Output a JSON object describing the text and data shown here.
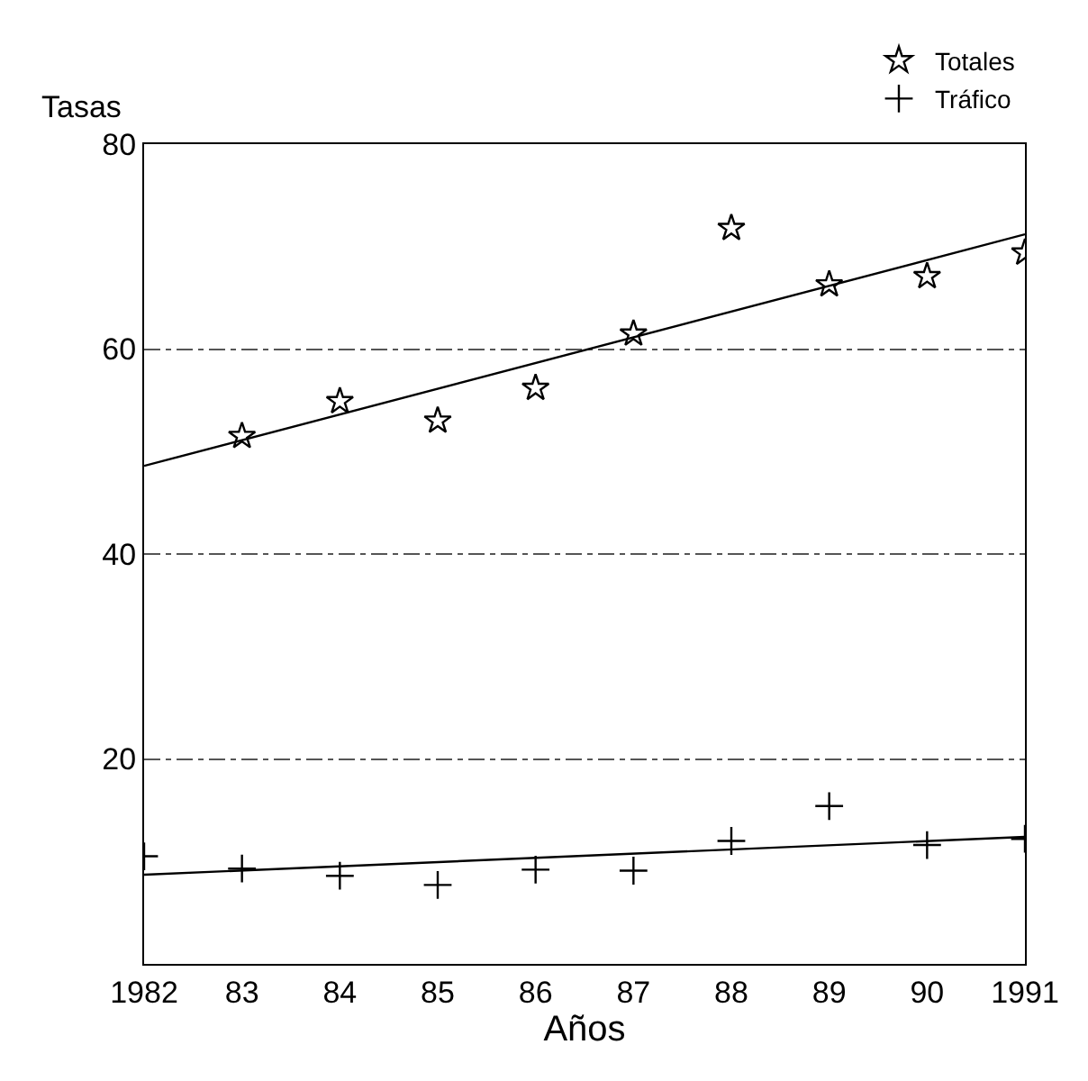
{
  "chart_data": {
    "type": "scatter",
    "xlabel": "Años",
    "ylabel": "Tasas",
    "x": [
      1982,
      1983,
      1984,
      1985,
      1986,
      1987,
      1988,
      1989,
      1990,
      1991
    ],
    "series": [
      {
        "name": "Totales",
        "color": "#000000",
        "marker": "star",
        "x": [
          1983,
          1984,
          1985,
          1986,
          1987,
          1988,
          1989,
          1990,
          1991
        ],
        "values": [
          51.5,
          54.9,
          53.0,
          56.2,
          61.5,
          71.8,
          66.3,
          67.1,
          69.4
        ]
      },
      {
        "type": "line",
        "color": "#000000",
        "marker": "none",
        "x": [
          1982,
          1991
        ],
        "values": [
          48.6,
          71.2
        ]
      },
      {
        "name": "Tráfico",
        "color": "#000000",
        "marker": "cross",
        "values": [
          10.5,
          9.3,
          8.6,
          7.7,
          9.2,
          9.1,
          12.0,
          15.4,
          11.6,
          12.2
        ]
      },
      {
        "type": "line",
        "color": "#000000",
        "marker": "none",
        "x": [
          1982,
          1991
        ],
        "values": [
          8.7,
          12.4
        ]
      }
    ],
    "xlim": [
      1982,
      1991
    ],
    "xticks": [
      1982,
      {
        "value": 1983,
        "label": "83"
      },
      {
        "value": 1984,
        "label": "84"
      },
      {
        "value": 1985,
        "label": "85"
      },
      {
        "value": 1986,
        "label": "86"
      },
      {
        "value": 1987,
        "label": "87"
      },
      {
        "value": 1988,
        "label": "88"
      },
      {
        "value": 1989,
        "label": "89"
      },
      {
        "value": 1990,
        "label": "90"
      },
      1991
    ],
    "ylim": [
      0,
      80
    ],
    "yticks": [
      20,
      40,
      60,
      80
    ],
    "grid": "y",
    "legend": "top right"
  }
}
